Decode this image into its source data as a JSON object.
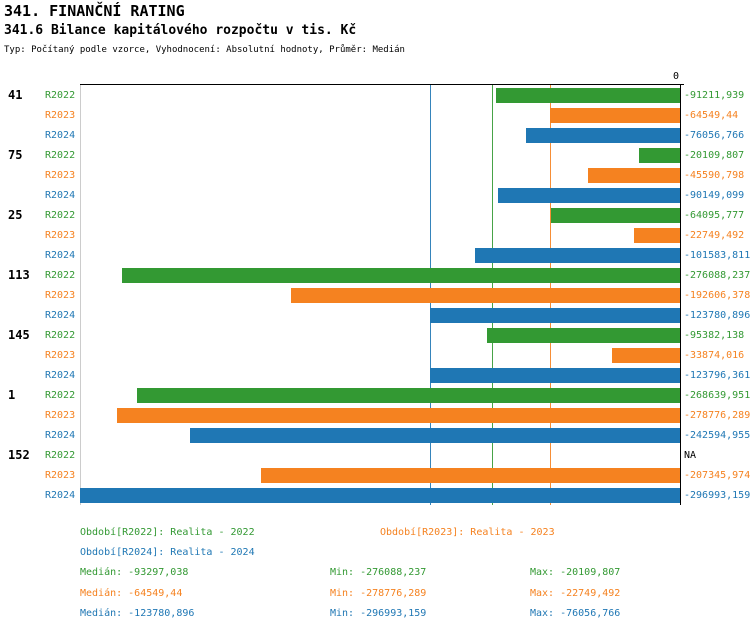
{
  "header": {
    "title": "341. FINANČNÍ RATING",
    "subtitle": "341.6 Bilance kapitálového rozpočtu v tis. Kč",
    "meta": "Typ: Počítaný podle vzorce, Vyhodnocení: Absolutní hodnoty, Průměr: Medián"
  },
  "chart_data": {
    "type": "bar",
    "orientation": "horizontal",
    "title": "341.6 Bilance kapitálového rozpočtu v tis. Kč",
    "axis": {
      "min": -297000,
      "max": 0,
      "zero_label": "0"
    },
    "series_keys": [
      "R2022",
      "R2023",
      "R2024"
    ],
    "series_colors": {
      "R2022": "#339933",
      "R2023": "#F58220",
      "R2024": "#1F77B4"
    },
    "na_color": "#000000",
    "medians": {
      "R2022": -93297.038,
      "R2023": -64549.44,
      "R2024": -123780.896
    },
    "groups": [
      {
        "label": "41",
        "bars": [
          {
            "series": "R2022",
            "value": -91211.939,
            "display": "-91211,939"
          },
          {
            "series": "R2023",
            "value": -64549.44,
            "display": "-64549,44"
          },
          {
            "series": "R2024",
            "value": -76056.766,
            "display": "-76056,766"
          }
        ]
      },
      {
        "label": "75",
        "bars": [
          {
            "series": "R2022",
            "value": -20109.807,
            "display": "-20109,807"
          },
          {
            "series": "R2023",
            "value": -45590.798,
            "display": "-45590,798"
          },
          {
            "series": "R2024",
            "value": -90149.099,
            "display": "-90149,099"
          }
        ]
      },
      {
        "label": "25",
        "bars": [
          {
            "series": "R2022",
            "value": -64095.777,
            "display": "-64095,777"
          },
          {
            "series": "R2023",
            "value": -22749.492,
            "display": "-22749,492"
          },
          {
            "series": "R2024",
            "value": -101583.811,
            "display": "-101583,811"
          }
        ]
      },
      {
        "label": "113",
        "bars": [
          {
            "series": "R2022",
            "value": -276088.237,
            "display": "-276088,237"
          },
          {
            "series": "R2023",
            "value": -192606.378,
            "display": "-192606,378"
          },
          {
            "series": "R2024",
            "value": -123780.896,
            "display": "-123780,896"
          }
        ]
      },
      {
        "label": "145",
        "bars": [
          {
            "series": "R2022",
            "value": -95382.138,
            "display": "-95382,138"
          },
          {
            "series": "R2023",
            "value": -33874.016,
            "display": "-33874,016"
          },
          {
            "series": "R2024",
            "value": -123796.361,
            "display": "-123796,361"
          }
        ]
      },
      {
        "label": "1",
        "bars": [
          {
            "series": "R2022",
            "value": -268639.951,
            "display": "-268639,951"
          },
          {
            "series": "R2023",
            "value": -278776.289,
            "display": "-278776,289"
          },
          {
            "series": "R2024",
            "value": -242594.955,
            "display": "-242594,955"
          }
        ]
      },
      {
        "label": "152",
        "bars": [
          {
            "series": "R2022",
            "value": null,
            "display": "NA"
          },
          {
            "series": "R2023",
            "value": -207345.974,
            "display": "-207345,974"
          },
          {
            "series": "R2024",
            "value": -296993.159,
            "display": "-296993,159"
          }
        ]
      }
    ]
  },
  "legend": {
    "items": [
      {
        "series": "R2022",
        "label": "Období[R2022]: Realita - 2022"
      },
      {
        "series": "R2023",
        "label": "Období[R2023]: Realita - 2023"
      },
      {
        "series": "R2024",
        "label": "Období[R2024]: Realita - 2024"
      }
    ]
  },
  "stats": {
    "rows": [
      {
        "series": "R2022",
        "median": "Medián: -93297,038",
        "min": "Min: -276088,237",
        "max": "Max: -20109,807"
      },
      {
        "series": "R2023",
        "median": "Medián: -64549,44",
        "min": "Min: -278776,289",
        "max": "Max: -22749,492"
      },
      {
        "series": "R2024",
        "median": "Medián: -123780,896",
        "min": "Min: -296993,159",
        "max": "Max: -76056,766"
      }
    ]
  }
}
